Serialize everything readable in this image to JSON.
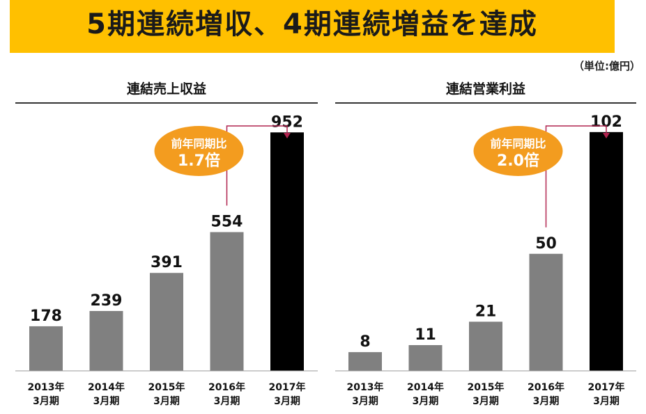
{
  "headline": "5期連続増収、4期連続増益を達成",
  "unit_note": "（単位:億円）",
  "colors": {
    "banner": "#ffc000",
    "bar": "#808080",
    "bar_highlight": "#000000",
    "bubble": "#f39c1f",
    "connector": "#b0234f"
  },
  "chart_data": [
    {
      "type": "bar",
      "title": "連結売上収益",
      "categories": [
        [
          "2013年",
          "3月期"
        ],
        [
          "2014年",
          "3月期"
        ],
        [
          "2015年",
          "3月期"
        ],
        [
          "2016年",
          "3月期"
        ],
        [
          "2017年",
          "3月期"
        ]
      ],
      "values": [
        178,
        239,
        391,
        554,
        952
      ],
      "value_labels": [
        "178",
        "239",
        "391",
        "554",
        "952"
      ],
      "highlight_index": 4,
      "ylim": [
        0,
        1000
      ],
      "callout": {
        "line1": "前年同期比",
        "line2": "1.7倍",
        "from_index": 3,
        "to_index": 4
      }
    },
    {
      "type": "bar",
      "title": "連結営業利益",
      "categories": [
        [
          "2013年",
          "3月期"
        ],
        [
          "2014年",
          "3月期"
        ],
        [
          "2015年",
          "3月期"
        ],
        [
          "2016年",
          "3月期"
        ],
        [
          "2017年",
          "3月期"
        ]
      ],
      "values": [
        8,
        11,
        21,
        50,
        102
      ],
      "value_labels": [
        "8",
        "11",
        "21",
        "50",
        "102"
      ],
      "highlight_index": 4,
      "ylim": [
        0,
        107
      ],
      "callout": {
        "line1": "前年同期比",
        "line2": "2.0倍",
        "from_index": 3,
        "to_index": 4
      }
    }
  ]
}
